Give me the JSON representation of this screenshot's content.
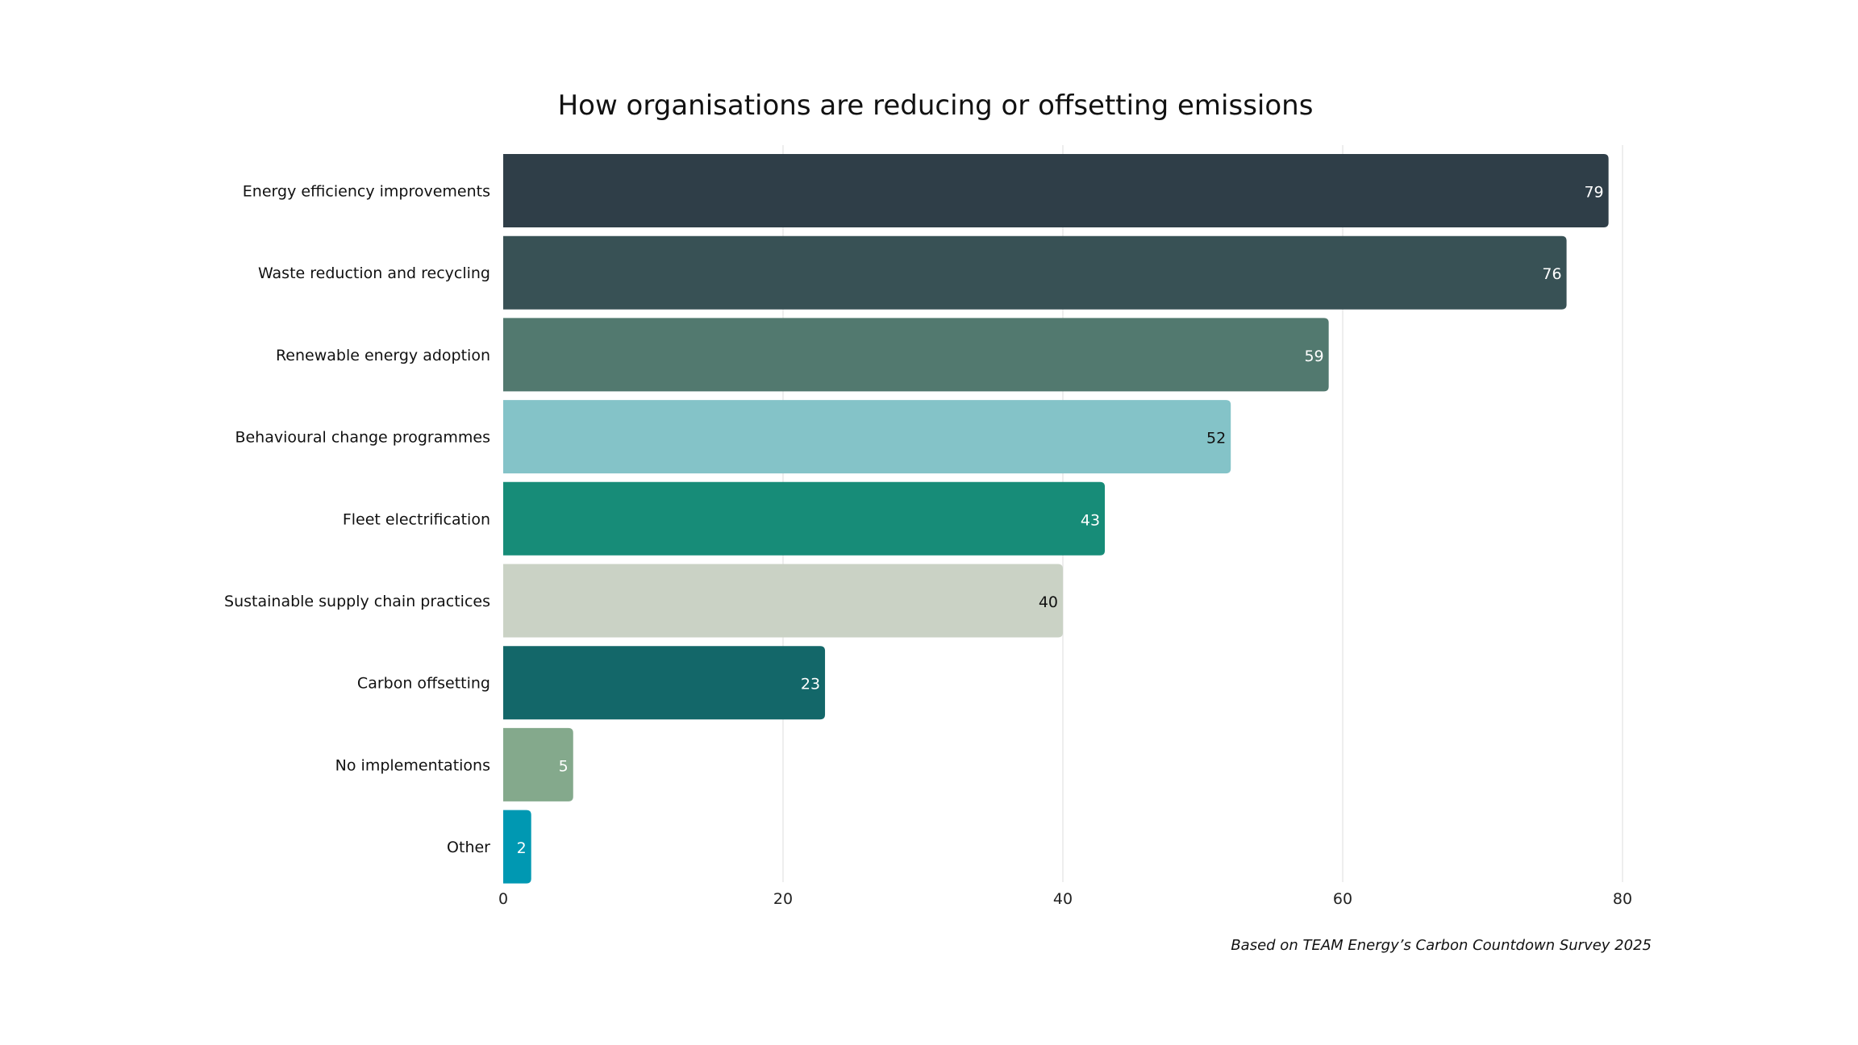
{
  "chart_data": {
    "type": "bar",
    "orientation": "horizontal",
    "title": "How organisations are reducing or offsetting emissions",
    "xlabel": "",
    "ylabel": "",
    "xlim": [
      0,
      80
    ],
    "xticks": [
      0,
      20,
      40,
      60,
      80
    ],
    "xtick_labels": [
      "0",
      "20",
      "40",
      "60",
      "80"
    ],
    "grid": true,
    "categories": [
      "Energy efficiency improvements",
      "Waste reduction and recycling",
      "Renewable energy adoption",
      "Behavioural change programmes",
      "Fleet electrification",
      "Sustainable supply chain practices",
      "Carbon offsetting",
      "No implementations",
      "Other"
    ],
    "values": [
      79,
      76,
      59,
      52,
      43,
      40,
      23,
      5,
      2
    ],
    "data_labels": [
      "79",
      "76",
      "59",
      "52",
      "43",
      "40",
      "23",
      "5",
      "2"
    ],
    "colors": [
      "#2F3E48",
      "#385155",
      "#52796F",
      "#84C3C8",
      "#178C78",
      "#CAD2C5",
      "#136769",
      "#84A98C",
      "#0098B2"
    ],
    "label_colors": [
      "#ffffff",
      "#ffffff",
      "#ffffff",
      "#111111",
      "#ffffff",
      "#111111",
      "#ffffff",
      "#ffffff",
      "#ffffff"
    ],
    "annotation": "Based on TEAM Energy’s Carbon Countdown Survey 2025"
  }
}
